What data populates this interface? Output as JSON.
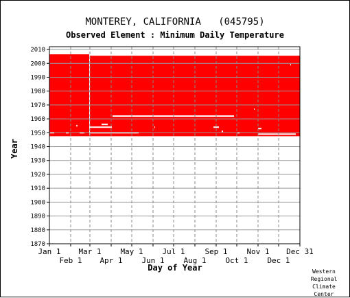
{
  "chart_data": {
    "type": "area",
    "title": "MONTEREY, CALIFORNIA   (045795)",
    "subtitle": "Observed Element : Minimum Daily Temperature",
    "xlabel": "Day of Year",
    "ylabel": "Year",
    "xlim": [
      1,
      366
    ],
    "ylim": [
      1870,
      2012
    ],
    "y_ticks": [
      1870,
      1880,
      1890,
      1900,
      1910,
      1920,
      1930,
      1940,
      1950,
      1960,
      1970,
      1980,
      1990,
      2000,
      2010
    ],
    "x_ticks_upper": [
      {
        "label": "Jan 1",
        "day": 1
      },
      {
        "label": "Mar 1",
        "day": 60
      },
      {
        "label": "May 1",
        "day": 121
      },
      {
        "label": "Jul 1",
        "day": 182
      },
      {
        "label": "Sep 1",
        "day": 244
      },
      {
        "label": "Nov 1",
        "day": 305
      },
      {
        "label": "Dec 31",
        "day": 366
      }
    ],
    "x_ticks_lower": [
      {
        "label": "Feb 1",
        "day": 32
      },
      {
        "label": "Apr 1",
        "day": 91
      },
      {
        "label": "Jun 1",
        "day": 152
      },
      {
        "label": "Aug 1",
        "day": 213
      },
      {
        "label": "Oct 1",
        "day": 274
      },
      {
        "label": "Dec 1",
        "day": 335
      }
    ],
    "grid": true,
    "color": "#ff0000",
    "data_blocks": [
      {
        "day_start": 1,
        "day_end": 59,
        "year_start": 1948,
        "year_end": 2006
      },
      {
        "day_start": 59,
        "day_end": 366,
        "year_start": 1948,
        "year_end": 2005
      }
    ],
    "gaps": [
      {
        "day_start": 1,
        "day_end": 8,
        "year": 1950
      },
      {
        "day_start": 25,
        "day_end": 29,
        "year": 1950
      },
      {
        "day_start": 40,
        "day_end": 42,
        "year": 1955
      },
      {
        "day_start": 45,
        "day_end": 52,
        "year": 1950
      },
      {
        "day_start": 59,
        "day_end": 60,
        "year_start": 1949,
        "year_end": 2005
      },
      {
        "day_start": 60,
        "day_end": 92,
        "year": 1954
      },
      {
        "day_start": 77,
        "day_end": 86,
        "year": 1956
      },
      {
        "day_start": 60,
        "day_end": 131,
        "year": 1950
      },
      {
        "day_start": 93,
        "day_end": 270,
        "year": 1962
      },
      {
        "day_start": 154,
        "day_end": 155,
        "year": 1954
      },
      {
        "day_start": 240,
        "day_end": 248,
        "year": 1954
      },
      {
        "day_start": 252,
        "day_end": 254,
        "year": 1951
      },
      {
        "day_start": 275,
        "day_end": 278,
        "year": 1950
      },
      {
        "day_start": 305,
        "day_end": 310,
        "year": 1953
      },
      {
        "day_start": 305,
        "day_end": 360,
        "year": 1949
      },
      {
        "day_start": 299,
        "day_end": 300,
        "year": 1967
      },
      {
        "day_start": 352,
        "day_end": 353,
        "year": 1999
      }
    ]
  },
  "credit": [
    "Western",
    "Regional",
    "Climate",
    "Center"
  ]
}
